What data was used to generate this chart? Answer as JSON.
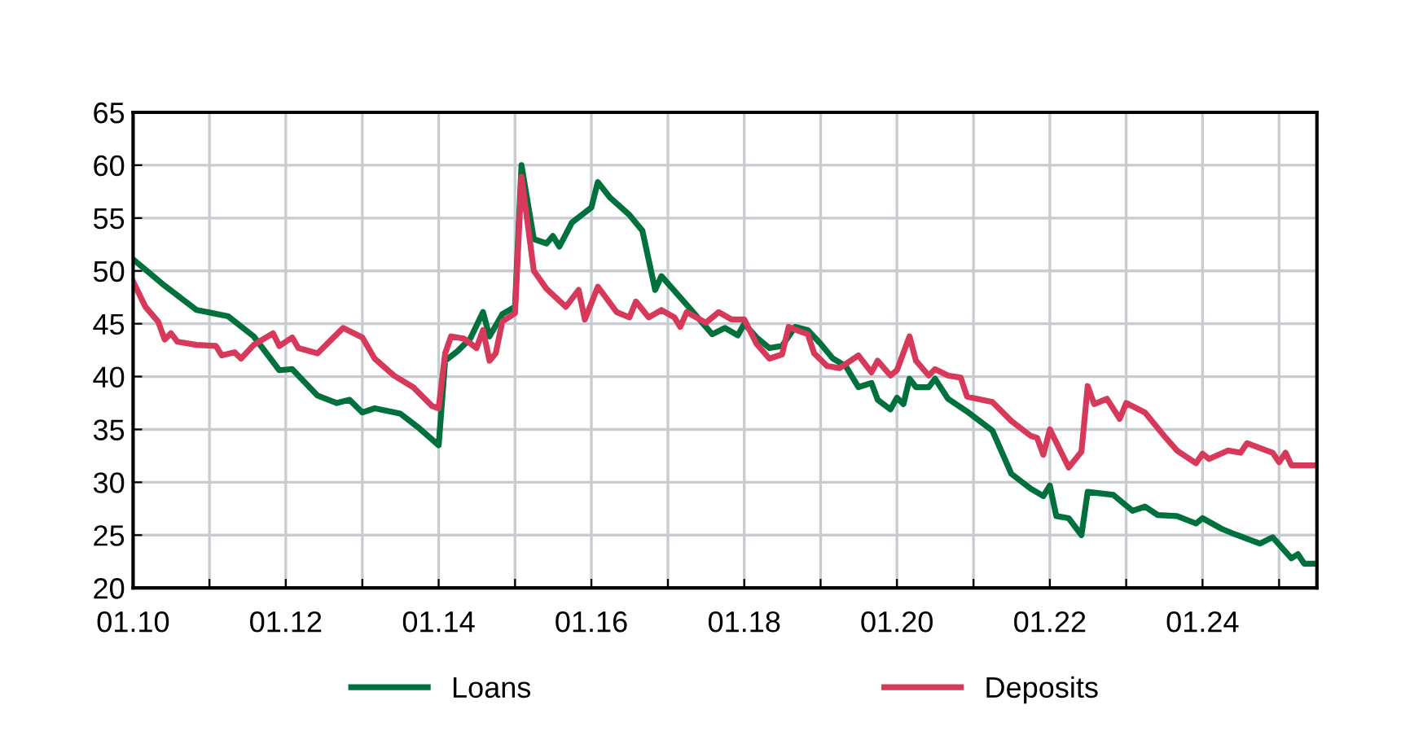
{
  "chart_data": {
    "type": "line",
    "xlim": [
      "2010-01",
      "2025-07"
    ],
    "ylim": [
      20,
      65
    ],
    "yticks": [
      20,
      25,
      30,
      35,
      40,
      45,
      50,
      55,
      60,
      65
    ],
    "xticks": [
      {
        "value": "2010-01",
        "label": "01.10"
      },
      {
        "value": "2011-01",
        "label": null
      },
      {
        "value": "2012-01",
        "label": "01.12"
      },
      {
        "value": "2013-01",
        "label": null
      },
      {
        "value": "2014-01",
        "label": "01.14"
      },
      {
        "value": "2015-01",
        "label": null
      },
      {
        "value": "2016-01",
        "label": "01.16"
      },
      {
        "value": "2017-01",
        "label": null
      },
      {
        "value": "2018-01",
        "label": "01.18"
      },
      {
        "value": "2019-01",
        "label": null
      },
      {
        "value": "2020-01",
        "label": "01.20"
      },
      {
        "value": "2021-01",
        "label": null
      },
      {
        "value": "2022-01",
        "label": "01.22"
      },
      {
        "value": "2023-01",
        "label": null
      },
      {
        "value": "2024-01",
        "label": "01.24"
      },
      {
        "value": "2025-01",
        "label": null
      }
    ],
    "grid": true,
    "legend": "bottom",
    "marker": "none",
    "line_style": "solid",
    "series": [
      {
        "name": "Loans",
        "color": "#00703c",
        "x": [
          "2010-01",
          "2010-06",
          "2010-11",
          "2011-04",
          "2011-08",
          "2011-12",
          "2012-02",
          "2012-06",
          "2012-09",
          "2012-11",
          "2013-01",
          "2013-03",
          "2013-07",
          "2013-10",
          "2014-01",
          "2014-02",
          "2014-04",
          "2014-06",
          "2014-08",
          "2014-09",
          "2014-11",
          "2015-01",
          "2015-02",
          "2015-04",
          "2015-06",
          "2015-07",
          "2015-08",
          "2015-10",
          "2016-01",
          "2016-02",
          "2016-04",
          "2016-07",
          "2016-09",
          "2016-11",
          "2016-12",
          "2017-04",
          "2017-08",
          "2017-10",
          "2017-12",
          "2018-01",
          "2018-03",
          "2018-05",
          "2018-07",
          "2018-09",
          "2018-11",
          "2019-01",
          "2019-03",
          "2019-05",
          "2019-07",
          "2019-09",
          "2019-10",
          "2019-12",
          "2020-01",
          "2020-02",
          "2020-03",
          "2020-04",
          "2020-06",
          "2020-07",
          "2020-09",
          "2020-12",
          "2021-04",
          "2021-07",
          "2021-10",
          "2021-12",
          "2022-01",
          "2022-02",
          "2022-04",
          "2022-06",
          "2022-07",
          "2022-11",
          "2023-01",
          "2023-02",
          "2023-04",
          "2023-06",
          "2023-09",
          "2023-12",
          "2024-01",
          "2024-04",
          "2024-06",
          "2024-10",
          "2024-12",
          "2025-03",
          "2025-04",
          "2025-05",
          "2025-07"
        ],
        "values": [
          51.1,
          48.6,
          46.3,
          45.7,
          43.8,
          40.6,
          40.7,
          38.2,
          37.5,
          37.8,
          36.6,
          37.0,
          36.5,
          35.1,
          33.5,
          41.5,
          42.4,
          43.6,
          46.1,
          43.8,
          45.9,
          46.6,
          60,
          53,
          52.6,
          53.3,
          52.3,
          54.6,
          56,
          58.4,
          56.9,
          55.3,
          53.8,
          48.2,
          49.5,
          46.8,
          44,
          44.6,
          43.9,
          45,
          43.7,
          42.7,
          42.9,
          44.7,
          44.4,
          43.1,
          41.7,
          41,
          39,
          39.4,
          37.8,
          36.9,
          38,
          37.4,
          39.8,
          39,
          39,
          39.8,
          37.9,
          36.7,
          34.9,
          30.8,
          29.4,
          28.7,
          29.7,
          26.8,
          26.6,
          25,
          29.1,
          28.8,
          27.8,
          27.3,
          27.7,
          26.9,
          26.8,
          26.1,
          26.6,
          25.6,
          25.1,
          24.2,
          24.8,
          22.8,
          23.2,
          22.3,
          22.3
        ]
      },
      {
        "name": "Deposits",
        "color": "#d6395a",
        "x": [
          "2010-01",
          "2010-03",
          "2010-05",
          "2010-06",
          "2010-07",
          "2010-08",
          "2010-11",
          "2011-02",
          "2011-03",
          "2011-05",
          "2011-06",
          "2011-08",
          "2011-11",
          "2011-12",
          "2012-02",
          "2012-03",
          "2012-06",
          "2012-08",
          "2012-10",
          "2013-01",
          "2013-03",
          "2013-06",
          "2013-09",
          "2013-12",
          "2014-01",
          "2014-02",
          "2014-03",
          "2014-05",
          "2014-07",
          "2014-08",
          "2014-09",
          "2014-10",
          "2014-11",
          "2015-01",
          "2015-02",
          "2015-04",
          "2015-06",
          "2015-09",
          "2015-11",
          "2015-12",
          "2016-02",
          "2016-05",
          "2016-07",
          "2016-08",
          "2016-10",
          "2016-12",
          "2017-02",
          "2017-03",
          "2017-04",
          "2017-07",
          "2017-09",
          "2017-11",
          "2018-01",
          "2018-03",
          "2018-05",
          "2018-07",
          "2018-08",
          "2018-11",
          "2018-12",
          "2019-02",
          "2019-04",
          "2019-07",
          "2019-09",
          "2019-10",
          "2019-12",
          "2020-01",
          "2020-03",
          "2020-04",
          "2020-06",
          "2020-07",
          "2020-09",
          "2020-11",
          "2020-12",
          "2021-04",
          "2021-07",
          "2021-10",
          "2021-11",
          "2021-12",
          "2022-01",
          "2022-04",
          "2022-06",
          "2022-07",
          "2022-08",
          "2022-10",
          "2022-12",
          "2023-01",
          "2023-04",
          "2023-07",
          "2023-09",
          "2023-12",
          "2024-01",
          "2024-02",
          "2024-05",
          "2024-07",
          "2024-08",
          "2024-12",
          "2025-01",
          "2025-02",
          "2025-03",
          "2025-07"
        ],
        "values": [
          49,
          46.6,
          45.2,
          43.5,
          44.1,
          43.3,
          43,
          42.9,
          42,
          42.3,
          41.7,
          43,
          44.1,
          42.9,
          43.7,
          42.7,
          42.2,
          43.4,
          44.6,
          43.7,
          41.7,
          40.1,
          39,
          37.2,
          37,
          42.2,
          43.8,
          43.6,
          42.7,
          44.4,
          41.5,
          42.2,
          45.2,
          46,
          58.9,
          50,
          48.3,
          46.6,
          48.2,
          45.4,
          48.5,
          46.1,
          45.6,
          47.1,
          45.6,
          46.3,
          45.6,
          44.7,
          46.1,
          45.1,
          46.1,
          45.4,
          45.4,
          43.1,
          41.7,
          42.1,
          44.7,
          44,
          42.2,
          41,
          40.8,
          42,
          40.4,
          41.5,
          40.1,
          40.6,
          43.8,
          41.5,
          40.1,
          40.7,
          40.1,
          39.9,
          38.1,
          37.6,
          35.8,
          34.4,
          34.2,
          32.6,
          35,
          31.4,
          32.9,
          39.1,
          37.4,
          37.9,
          36,
          37.5,
          36.6,
          34.4,
          33,
          31.8,
          32.7,
          32.2,
          33,
          32.8,
          33.7,
          32.8,
          31.9,
          32.8,
          31.6,
          31.6
        ]
      }
    ]
  }
}
